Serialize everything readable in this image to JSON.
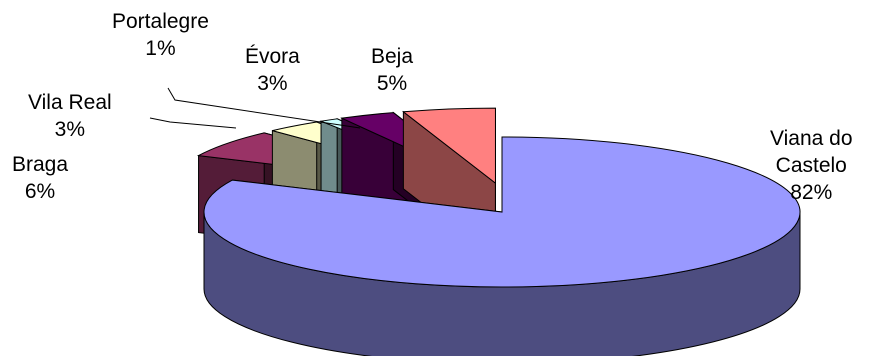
{
  "chart_data": {
    "type": "pie",
    "style": "3d-exploded",
    "title": "",
    "slices": [
      {
        "label": "Viana do Castelo",
        "value": 82,
        "value_label": "82%",
        "color": "#9999ff"
      },
      {
        "label": "Braga",
        "value": 6,
        "value_label": "6%",
        "color": "#993366"
      },
      {
        "label": "Vila Real",
        "value": 3,
        "value_label": "3%",
        "color": "#ffffcc"
      },
      {
        "label": "Portalegre",
        "value": 1,
        "value_label": "1%",
        "color": "#ccffff"
      },
      {
        "label": "Évora",
        "value": 3,
        "value_label": "3%",
        "color": "#660066"
      },
      {
        "label": "Beja",
        "value": 5,
        "value_label": "5%",
        "color": "#ff8080"
      }
    ],
    "labels": {
      "viana": {
        "line1": "Viana do",
        "line2": "Castelo",
        "pct": "82%"
      },
      "braga": {
        "name": "Braga",
        "pct": "6%"
      },
      "vila_real": {
        "name": "Vila Real",
        "pct": "3%"
      },
      "portalegre": {
        "name": "Portalegre",
        "pct": "1%"
      },
      "evora": {
        "name": "Évora",
        "pct": "3%"
      },
      "beja": {
        "name": "Beja",
        "pct": "5%"
      }
    }
  }
}
